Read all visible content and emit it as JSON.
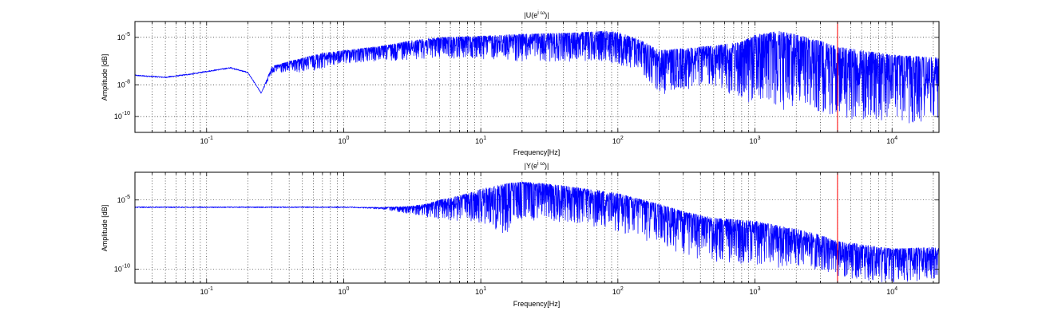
{
  "chart_data": [
    {
      "type": "line",
      "title": "|U(e^{iω})|",
      "title_main": "|U(e",
      "title_sup": "i ω",
      "title_tail": ")|",
      "xlabel": "Frequency[Hz]",
      "ylabel": "Amplitude [dB]",
      "xscale": "log",
      "yscale": "log",
      "xlim": [
        0.03,
        22000
      ],
      "ylim": [
        1e-11,
        0.0001
      ],
      "grid": true,
      "series_color": "#0000ff",
      "marker_color": "#ff0000",
      "marker_x": 4000,
      "x_ticks": [
        {
          "value": 0.1,
          "base": "10",
          "exp": "-1"
        },
        {
          "value": 1,
          "base": "10",
          "exp": "0"
        },
        {
          "value": 10,
          "base": "10",
          "exp": "1"
        },
        {
          "value": 100,
          "base": "10",
          "exp": "2"
        },
        {
          "value": 1000,
          "base": "10",
          "exp": "3"
        },
        {
          "value": 10000,
          "base": "10",
          "exp": "4"
        }
      ],
      "y_ticks": [
        {
          "value": 1e-10,
          "base": "10",
          "exp": "-10"
        },
        {
          "value": 1e-08,
          "base": "10",
          "exp": "-8"
        },
        {
          "value": 1e-05,
          "base": "10",
          "exp": "-5"
        }
      ],
      "envelope": {
        "x": [
          0.03,
          0.05,
          0.08,
          0.1,
          0.15,
          0.2,
          0.25,
          0.3,
          0.4,
          0.5,
          0.7,
          1,
          2,
          3,
          5,
          10,
          20,
          50,
          80,
          100,
          150,
          200,
          300,
          500,
          800,
          1000,
          1500,
          2000,
          3000,
          4000,
          6000,
          10000,
          22000
        ],
        "upper": [
          4e-08,
          3e-08,
          5e-08,
          7e-08,
          1.2e-07,
          6e-08,
          3e-09,
          1.5e-07,
          3e-07,
          5e-07,
          1e-06,
          1.5e-06,
          3e-06,
          6e-06,
          1e-05,
          1.2e-05,
          1.6e-05,
          2e-05,
          2.5e-05,
          2.2e-05,
          6e-06,
          1.5e-06,
          2e-06,
          3e-06,
          5e-06,
          1.5e-05,
          2.5e-05,
          1.5e-05,
          6e-06,
          2.5e-06,
          1.5e-06,
          8e-07,
          5e-07
        ],
        "lower": [
          4e-08,
          3e-08,
          5e-08,
          7e-08,
          1.2e-07,
          6e-08,
          3e-09,
          5e-08,
          5e-08,
          6e-08,
          1e-07,
          2e-07,
          3e-07,
          4e-07,
          5e-07,
          4e-07,
          3e-07,
          3e-07,
          3e-07,
          2e-07,
          5e-08,
          2e-09,
          5e-09,
          1e-08,
          6e-10,
          1e-09,
          2e-10,
          5e-10,
          2e-10,
          1e-10,
          5e-11,
          3e-11,
          5e-11
        ]
      }
    },
    {
      "type": "line",
      "title": "|Y(e^{iω})|",
      "title_main": "|Y(e",
      "title_sup": "i ω",
      "title_tail": ")|",
      "xlabel": "Frequency[Hz]",
      "ylabel": "Amplitude [dB]",
      "xscale": "log",
      "yscale": "log",
      "xlim": [
        0.03,
        22000
      ],
      "ylim": [
        1e-11,
        0.001
      ],
      "grid": true,
      "series_color": "#0000ff",
      "marker_color": "#ff0000",
      "marker_x": 4000,
      "x_ticks": [
        {
          "value": 0.1,
          "base": "10",
          "exp": "-1"
        },
        {
          "value": 1,
          "base": "10",
          "exp": "0"
        },
        {
          "value": 10,
          "base": "10",
          "exp": "1"
        },
        {
          "value": 100,
          "base": "10",
          "exp": "2"
        },
        {
          "value": 1000,
          "base": "10",
          "exp": "3"
        },
        {
          "value": 10000,
          "base": "10",
          "exp": "4"
        }
      ],
      "y_ticks": [
        {
          "value": 1e-10,
          "base": "10",
          "exp": "-10"
        },
        {
          "value": 1e-05,
          "base": "10",
          "exp": "-5"
        }
      ],
      "envelope": {
        "x": [
          0.03,
          0.1,
          0.5,
          1,
          2,
          3,
          4,
          5,
          7,
          10,
          15,
          20,
          30,
          50,
          100,
          200,
          300,
          500,
          1000,
          2000,
          3000,
          4000,
          5000,
          10000,
          22000
        ],
        "upper": [
          3e-06,
          3e-06,
          3e-06,
          3e-06,
          3e-06,
          3.5e-06,
          5e-06,
          1e-05,
          2e-05,
          6e-05,
          0.00015,
          0.0002,
          0.00015,
          8e-05,
          3e-05,
          5e-06,
          1.5e-06,
          5e-07,
          3e-07,
          8e-08,
          3e-08,
          1e-08,
          8e-09,
          3e-09,
          4e-09
        ],
        "lower": [
          3e-06,
          3e-06,
          3e-06,
          3e-06,
          2e-06,
          1e-06,
          6e-07,
          4e-07,
          3e-07,
          2e-07,
          3e-08,
          3e-07,
          3e-07,
          2e-07,
          5e-08,
          5e-09,
          1e-09,
          3e-10,
          2e-10,
          1e-10,
          1e-10,
          3e-11,
          2e-11,
          1e-11,
          2e-11
        ]
      }
    }
  ]
}
